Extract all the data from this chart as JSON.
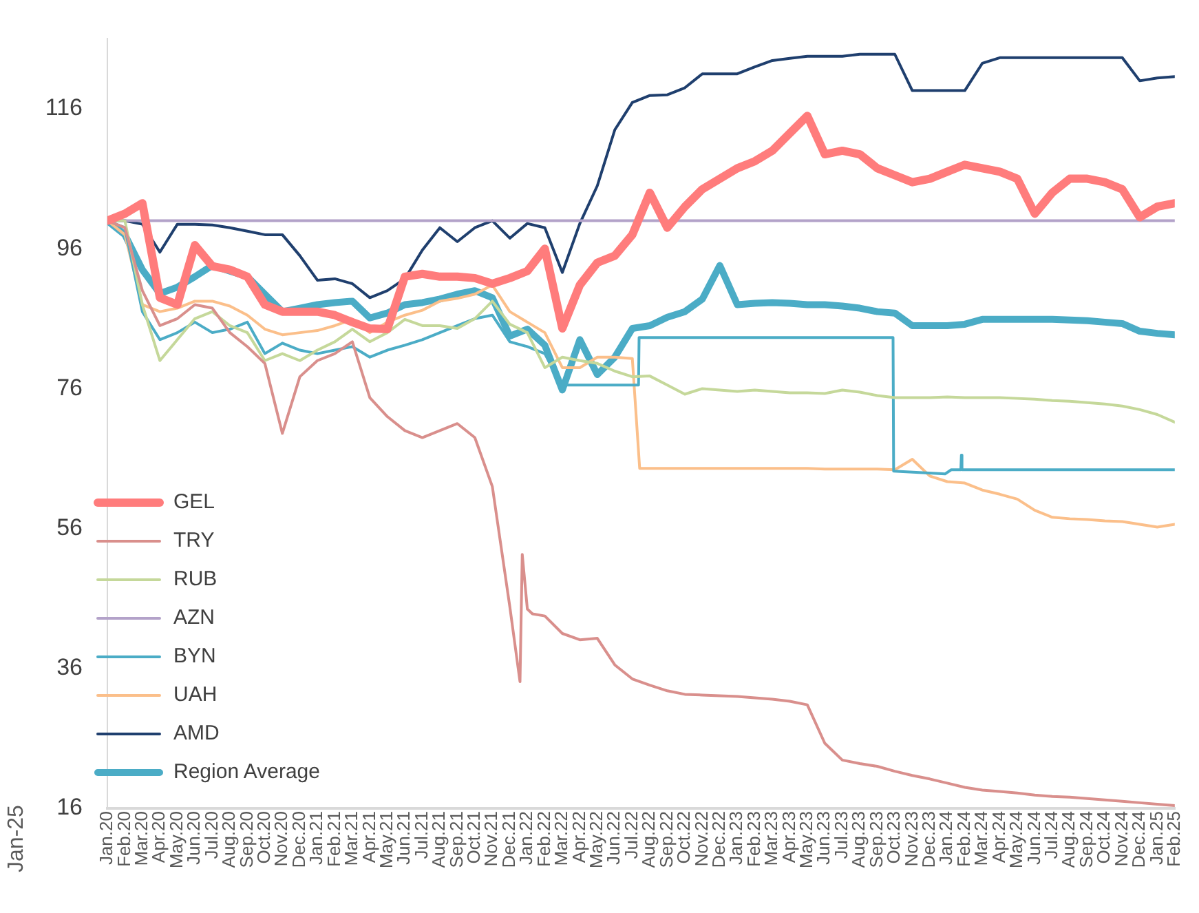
{
  "chart_data": {
    "type": "line",
    "x": [
      "2020-01",
      "2020-02",
      "2020-03",
      "2020-04",
      "2020-05",
      "2020-06",
      "2020-07",
      "2020-08",
      "2020-09",
      "2020-10",
      "2020-11",
      "2020-12",
      "2021-01",
      "2021-02",
      "2021-03",
      "2021-04",
      "2021-05",
      "2021-06",
      "2021-07",
      "2021-08",
      "2021-09",
      "2021-10",
      "2021-11",
      "2021-12",
      "2022-01",
      "2022-02",
      "2022-03",
      "2022-04",
      "2022-05",
      "2022-06",
      "2022-07",
      "2022-08",
      "2022-09",
      "2022-10",
      "2022-11",
      "2022-12",
      "2023-01",
      "2023-02",
      "2023-03",
      "2023-04",
      "2023-05",
      "2023-06",
      "2023-07",
      "2023-08",
      "2023-09",
      "2023-10",
      "2023-11",
      "2023-12",
      "2024-01",
      "2024-02",
      "2024-03",
      "2024-04",
      "2024-05",
      "2024-06",
      "2024-07",
      "2024-08",
      "2024-09",
      "2024-10",
      "2024-11",
      "2024-12",
      "2025-01",
      "2025-02"
    ],
    "xlim": [
      "2020-01",
      "2025-02"
    ],
    "xticks": [
      {
        "value": "2020-01",
        "label": "Jan.20"
      },
      {
        "value": "2020-02",
        "label": "Feb.20"
      },
      {
        "value": "2020-03",
        "label": "Mar.20"
      },
      {
        "value": "2020-04",
        "label": "Apr.20"
      },
      {
        "value": "2020-05",
        "label": "May.20"
      },
      {
        "value": "2020-06",
        "label": "Jun.20"
      },
      {
        "value": "2020-07",
        "label": "Jul.20"
      },
      {
        "value": "2020-08",
        "label": "Aug.20"
      },
      {
        "value": "2020-09",
        "label": "Sep.20"
      },
      {
        "value": "2020-10",
        "label": "Oct.20"
      },
      {
        "value": "2020-11",
        "label": "Nov.20"
      },
      {
        "value": "2020-12",
        "label": "Dec.20"
      },
      {
        "value": "2021-01",
        "label": "Jan.21"
      },
      {
        "value": "2021-02",
        "label": "Feb.21"
      },
      {
        "value": "2021-03",
        "label": "Mar.21"
      },
      {
        "value": "2021-04",
        "label": "Apr.21"
      },
      {
        "value": "2021-05",
        "label": "May.21"
      },
      {
        "value": "2021-06",
        "label": "Jun.21"
      },
      {
        "value": "2021-07",
        "label": "Jul.21"
      },
      {
        "value": "2021-08",
        "label": "Aug.21"
      },
      {
        "value": "2021-09",
        "label": "Sep.21"
      },
      {
        "value": "2021-10",
        "label": "Oct.21"
      },
      {
        "value": "2021-11",
        "label": "Nov.21"
      },
      {
        "value": "2021-12",
        "label": "Dec.21"
      },
      {
        "value": "2022-01",
        "label": "Jan.22"
      },
      {
        "value": "2022-02",
        "label": "Feb.22"
      },
      {
        "value": "2022-03",
        "label": "Mar.22"
      },
      {
        "value": "2022-04",
        "label": "Apr.22"
      },
      {
        "value": "2022-05",
        "label": "May.22"
      },
      {
        "value": "2022-06",
        "label": "Jun.22"
      },
      {
        "value": "2022-07",
        "label": "Jul.22"
      },
      {
        "value": "2022-08",
        "label": "Aug.22"
      },
      {
        "value": "2022-09",
        "label": "Sep.22"
      },
      {
        "value": "2022-10",
        "label": "Oct.22"
      },
      {
        "value": "2022-11",
        "label": "Nov.22"
      },
      {
        "value": "2022-12",
        "label": "Dec.22"
      },
      {
        "value": "2023-01",
        "label": "Jan.23"
      },
      {
        "value": "2023-02",
        "label": "Feb.23"
      },
      {
        "value": "2023-03",
        "label": "Mar.23"
      },
      {
        "value": "2023-04",
        "label": "Apr.23"
      },
      {
        "value": "2023-05",
        "label": "May.23"
      },
      {
        "value": "2023-06",
        "label": "Jun.23"
      },
      {
        "value": "2023-07",
        "label": "Jul.23"
      },
      {
        "value": "2023-08",
        "label": "Aug.23"
      },
      {
        "value": "2023-09",
        "label": "Sep.23"
      },
      {
        "value": "2023-10",
        "label": "Oct.23"
      },
      {
        "value": "2023-11",
        "label": "Nov.23"
      },
      {
        "value": "2023-12",
        "label": "Dec.23"
      },
      {
        "value": "2024-01",
        "label": "Jan.24"
      },
      {
        "value": "2024-02",
        "label": "Feb.24"
      },
      {
        "value": "2024-03",
        "label": "Mar.24"
      },
      {
        "value": "2024-04",
        "label": "Apr.24"
      },
      {
        "value": "2024-05",
        "label": "May.24"
      },
      {
        "value": "2024-06",
        "label": "Jun.24"
      },
      {
        "value": "2024-07",
        "label": "Jul.24"
      },
      {
        "value": "2024-08",
        "label": "Aug.24"
      },
      {
        "value": "2024-09",
        "label": "Sep.24"
      },
      {
        "value": "2024-10",
        "label": "Oct.24"
      },
      {
        "value": "2024-11",
        "label": "Nov.24"
      },
      {
        "value": "2024-12",
        "label": "Dec.24"
      },
      {
        "value": "2025-01",
        "label": "Jan.25"
      },
      {
        "value": "2025-02",
        "label": "Feb.25"
      }
    ],
    "ylim": [
      16,
      126
    ],
    "yticks": [
      16,
      36,
      56,
      76,
      96,
      116
    ],
    "grid": false,
    "legend": "bottom left",
    "marker": "none",
    "line_style": "solid",
    "annotations": [
      "Jan-25"
    ],
    "series": [
      {
        "name": "GEL",
        "color": "#ff7c7c",
        "values": [
          100,
          101,
          102.5,
          89,
          88,
          96.5,
          93.5,
          93,
          92,
          88,
          87,
          87,
          87,
          86.5,
          85.5,
          84.6,
          84.5,
          92,
          92.4,
          92,
          92,
          91.8,
          91,
          91.8,
          92.8,
          96,
          84.6,
          90.8,
          94,
          95,
          98,
          104,
          99,
          102,
          104.5,
          106,
          107.5,
          108.5,
          110,
          112.5,
          115,
          109.5,
          110,
          109.5,
          107.5,
          106.5,
          105.5,
          106,
          107,
          108,
          107.5,
          107,
          106,
          101,
          104,
          106,
          106,
          105.5,
          104.5,
          100.5,
          102,
          102.5
        ]
      },
      {
        "name": "TRY",
        "color": "#d98f8c",
        "x": [
          "2020-01",
          "2020-02",
          "2020-03",
          "2020-04",
          "2020-05",
          "2020-06",
          "2020-07",
          "2020-08",
          "2020-09",
          "2020-10",
          "2020-11",
          "2020-12",
          "2021-01",
          "2021-02",
          "2021-03",
          "2021-04",
          "2021-05",
          "2021-06",
          "2021-07",
          "2021-08",
          "2021-09",
          "2021-10",
          "2021-11",
          "2021-12",
          "2021-12-19",
          "2021-12-23",
          "2022-01",
          "2022-01-10",
          "2022-02",
          "2022-03",
          "2022-04",
          "2022-05",
          "2022-06",
          "2022-07",
          "2022-08",
          "2022-09",
          "2022-10",
          "2022-11",
          "2022-12",
          "2023-01",
          "2023-02",
          "2023-03",
          "2023-04",
          "2023-05",
          "2023-06",
          "2023-07",
          "2023-08",
          "2023-09",
          "2023-10",
          "2023-11",
          "2023-12",
          "2024-01",
          "2024-02",
          "2024-03",
          "2024-04",
          "2024-05",
          "2024-06",
          "2024-07",
          "2024-08",
          "2024-09",
          "2024-10",
          "2024-11",
          "2024-12",
          "2025-01",
          "2025-02"
        ],
        "values": [
          100,
          99,
          90,
          85,
          86,
          88,
          87.5,
          84,
          82,
          79.6,
          69.6,
          77.7,
          80,
          81,
          82.7,
          74.7,
          72,
          70,
          69,
          70,
          71,
          69,
          62,
          44.8,
          34.1,
          52.3,
          44.5,
          43.8,
          43.5,
          41,
          40.1,
          40.3,
          36.5,
          34.5,
          33.6,
          32.8,
          32.3,
          32.2,
          32.1,
          32,
          31.8,
          31.6,
          31.3,
          30.8,
          25.3,
          22.9,
          22.4,
          22,
          21.3,
          20.7,
          20.2,
          19.6,
          19,
          18.6,
          18.4,
          18.2,
          17.9,
          17.7,
          17.6,
          17.4,
          17.2,
          17,
          16.8,
          16.6,
          16.4
        ]
      },
      {
        "name": "RUB",
        "color": "#c5d89a",
        "values": [
          100,
          100,
          88,
          80,
          83,
          86,
          87,
          85,
          84,
          80,
          81,
          80,
          81.5,
          82.7,
          84.5,
          82.7,
          84,
          85.9,
          85,
          85,
          84.6,
          86,
          88.5,
          85.2,
          84,
          79,
          80.5,
          80,
          79.6,
          78.5,
          77.7,
          77.8,
          76.5,
          75.2,
          76,
          75.8,
          75.6,
          75.8,
          75.6,
          75.4,
          75.4,
          75.3,
          75.8,
          75.5,
          75,
          74.7,
          74.7,
          74.7,
          74.8,
          74.7,
          74.7,
          74.7,
          74.6,
          74.5,
          74.3,
          74.2,
          74,
          73.8,
          73.5,
          73,
          72.3,
          71.2
        ]
      },
      {
        "name": "AZN",
        "color": "#b3a2c9",
        "values": [
          100,
          100,
          100,
          100,
          100,
          100,
          100,
          100,
          100,
          100,
          100,
          100,
          100,
          100,
          100,
          100,
          100,
          100,
          100,
          100,
          100,
          100,
          100,
          100,
          100,
          100,
          100,
          100,
          100,
          100,
          100,
          100,
          100,
          100,
          100,
          100,
          100,
          100,
          100,
          100,
          100,
          100,
          100,
          100,
          100,
          100,
          100,
          100,
          100,
          100,
          100,
          100,
          100,
          100,
          100,
          100,
          100,
          100,
          100,
          100,
          100,
          100
        ]
      },
      {
        "name": "BYN",
        "color": "#4bacc6",
        "x": [
          "2020-01",
          "2020-02",
          "2020-03",
          "2020-04",
          "2020-05",
          "2020-06",
          "2020-07",
          "2020-08",
          "2020-09",
          "2020-10",
          "2020-11",
          "2020-12",
          "2021-01",
          "2021-02",
          "2021-03",
          "2021-04",
          "2021-05",
          "2021-06",
          "2021-07",
          "2021-08",
          "2021-09",
          "2021-10",
          "2021-11",
          "2021-12",
          "2022-01",
          "2022-02",
          "2022-02-27",
          "2022-07-12",
          "2022-07-13",
          "2023-09-28",
          "2023-09-29",
          "2023-12-28",
          "2024-01-08",
          "2024-01-25",
          "2024-01-26",
          "2024-01-27",
          "2025-02"
        ],
        "values": [
          100,
          99,
          87,
          83,
          84,
          85.5,
          84,
          84.5,
          85.5,
          81,
          82.5,
          81.5,
          81,
          81.5,
          82,
          80.5,
          81.5,
          82.2,
          83,
          84,
          85,
          86,
          86.5,
          82.7,
          82,
          81,
          76.5,
          76.5,
          83.3,
          83.3,
          64.2,
          63.8,
          64.4,
          64.4,
          66.5,
          64.4,
          64.4
        ]
      },
      {
        "name": "UAH",
        "color": "#fbbf8a",
        "x": [
          "2020-01",
          "2020-02",
          "2020-03",
          "2020-04",
          "2020-05",
          "2020-06",
          "2020-07",
          "2020-08",
          "2020-09",
          "2020-10",
          "2020-11",
          "2020-12",
          "2021-01",
          "2021-02",
          "2021-03",
          "2021-04",
          "2021-05",
          "2021-06",
          "2021-07",
          "2021-08",
          "2021-09",
          "2021-10",
          "2021-11",
          "2021-12",
          "2022-01",
          "2022-02",
          "2022-03",
          "2022-04",
          "2022-05",
          "2022-06",
          "2022-07",
          "2022-07-14",
          "2022-08",
          "2022-09",
          "2022-10",
          "2022-11",
          "2022-12",
          "2023-01",
          "2023-02",
          "2023-03",
          "2023-04",
          "2023-05",
          "2023-06",
          "2023-07",
          "2023-08",
          "2023-09",
          "2023-10",
          "2023-11",
          "2023-12",
          "2024-01",
          "2024-02",
          "2024-03",
          "2024-04",
          "2024-05",
          "2024-06",
          "2024-07",
          "2024-08",
          "2024-09",
          "2024-10",
          "2024-11",
          "2024-12",
          "2025-01",
          "2025-02"
        ],
        "values": [
          100,
          98,
          88,
          87,
          87.5,
          88.5,
          88.5,
          87.8,
          86.5,
          84.5,
          83.7,
          84,
          84.3,
          85,
          85.9,
          84,
          85.5,
          86.5,
          87.2,
          88.5,
          88.9,
          89.5,
          90.8,
          87,
          85.5,
          84,
          79,
          79,
          80.5,
          80.5,
          80.3,
          64.6,
          64.6,
          64.6,
          64.6,
          64.6,
          64.6,
          64.6,
          64.6,
          64.6,
          64.6,
          64.6,
          64.5,
          64.5,
          64.5,
          64.5,
          64.4,
          65.9,
          63.5,
          62.7,
          62.5,
          61.5,
          60.9,
          60.2,
          58.6,
          57.6,
          57.4,
          57.3,
          57.1,
          57,
          56.6,
          56.2,
          56.6
        ]
      },
      {
        "name": "AMD",
        "color": "#1f3f6e",
        "values": [
          100,
          100,
          99.5,
          95.5,
          99.5,
          99.5,
          99.4,
          99,
          98.5,
          98,
          98,
          95,
          91.5,
          91.7,
          91,
          89,
          90,
          91.7,
          95.8,
          99,
          97,
          99,
          100,
          97.5,
          99.6,
          99,
          92.6,
          99.6,
          105,
          113,
          116.9,
          117.9,
          118,
          119,
          121,
          121,
          121,
          122,
          122.9,
          123.2,
          123.5,
          123.5,
          123.5,
          123.8,
          123.8,
          123.8,
          118.6,
          118.6,
          118.6,
          118.6,
          122.5,
          123.3,
          123.3,
          123.3,
          123.3,
          123.3,
          123.3,
          123.3,
          123.3,
          120,
          120.4,
          120.6
        ]
      },
      {
        "name": "Region Average",
        "color": "#4bacc6",
        "values": [
          100,
          98,
          93,
          89.6,
          90.5,
          92,
          93.6,
          92.8,
          92,
          89.5,
          87,
          87.5,
          88,
          88.3,
          88.5,
          86.1,
          86.8,
          88,
          88.3,
          88.8,
          89.5,
          90,
          89,
          83.5,
          84.5,
          82.2,
          75.8,
          83,
          78,
          80.5,
          84.6,
          85,
          86.2,
          87,
          88.8,
          93.6,
          88,
          88.2,
          88.3,
          88.2,
          88,
          88,
          87.8,
          87.5,
          87,
          86.8,
          85,
          85,
          85,
          85.2,
          85.9,
          85.9,
          85.9,
          85.9,
          85.9,
          85.8,
          85.7,
          85.5,
          85.3,
          84.2,
          83.9,
          83.7
        ]
      }
    ]
  }
}
